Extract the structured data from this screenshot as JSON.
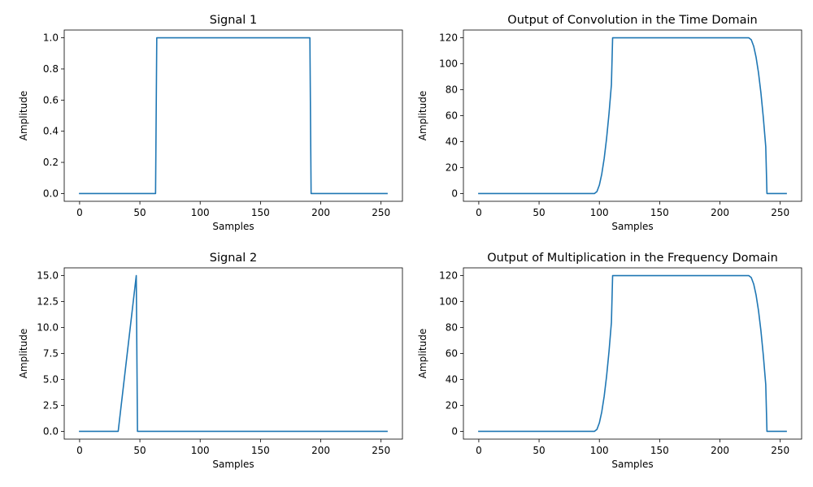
{
  "chart_data": [
    {
      "type": "line",
      "title": "Signal 1",
      "xlabel": "Samples",
      "ylabel": "Amplitude",
      "xlim": [
        -12.75,
        267.75
      ],
      "ylim": [
        -0.05,
        1.05
      ],
      "xticks": [
        0,
        50,
        100,
        150,
        200,
        250
      ],
      "xtick_labels": [
        "0",
        "50",
        "100",
        "150",
        "200",
        "250"
      ],
      "yticks": [
        0,
        0.2,
        0.4,
        0.6,
        0.8,
        1.0
      ],
      "ytick_labels": [
        "0.0",
        "0.2",
        "0.4",
        "0.6",
        "0.8",
        "1.0"
      ],
      "grid": false,
      "color": "#1f77b4",
      "series": [
        {
          "x": [
            0,
            63,
            64,
            191,
            192,
            255
          ],
          "y": [
            0,
            0,
            1,
            1,
            0,
            0
          ]
        }
      ]
    },
    {
      "type": "line",
      "title": "Output of Convolution in the Time Domain",
      "xlabel": "Samples",
      "ylabel": "Amplitude",
      "xlim": [
        -12.75,
        267.75
      ],
      "ylim": [
        -6,
        126
      ],
      "xticks": [
        0,
        50,
        100,
        150,
        200,
        250
      ],
      "xtick_labels": [
        "0",
        "50",
        "100",
        "150",
        "200",
        "250"
      ],
      "yticks": [
        0,
        20,
        40,
        60,
        80,
        100,
        120
      ],
      "ytick_labels": [
        "0",
        "20",
        "40",
        "60",
        "80",
        "100",
        "120"
      ],
      "grid": false,
      "color": "#1f77b4",
      "series": [
        {
          "x": [
            0,
            96,
            98,
            100,
            102,
            104,
            106,
            108,
            110,
            111,
            224,
            226,
            228,
            230,
            232,
            234,
            236,
            238,
            239,
            255
          ],
          "y": [
            0,
            0,
            1.5,
            6.5,
            15,
            27,
            42.5,
            61.5,
            84,
            120,
            120,
            118.5,
            113.5,
            105,
            93,
            77.5,
            58.5,
            36,
            0,
            0
          ]
        }
      ]
    },
    {
      "type": "line",
      "title": "Signal 2",
      "xlabel": "Samples",
      "ylabel": "Amplitude",
      "xlim": [
        -12.75,
        267.75
      ],
      "ylim": [
        -0.75,
        15.75
      ],
      "xticks": [
        0,
        50,
        100,
        150,
        200,
        250
      ],
      "xtick_labels": [
        "0",
        "50",
        "100",
        "150",
        "200",
        "250"
      ],
      "yticks": [
        0,
        2.5,
        5,
        7.5,
        10,
        12.5,
        15
      ],
      "ytick_labels": [
        "0.0",
        "2.5",
        "5.0",
        "7.5",
        "10.0",
        "12.5",
        "15.0"
      ],
      "grid": false,
      "color": "#1f77b4",
      "series": [
        {
          "x": [
            0,
            32,
            47,
            48,
            255
          ],
          "y": [
            0,
            0,
            15,
            0,
            0
          ]
        }
      ]
    },
    {
      "type": "line",
      "title": "Output of Multiplication in the Frequency Domain",
      "xlabel": "Samples",
      "ylabel": "Amplitude",
      "xlim": [
        -12.75,
        267.75
      ],
      "ylim": [
        -6,
        126
      ],
      "xticks": [
        0,
        50,
        100,
        150,
        200,
        250
      ],
      "xtick_labels": [
        "0",
        "50",
        "100",
        "150",
        "200",
        "250"
      ],
      "yticks": [
        0,
        20,
        40,
        60,
        80,
        100,
        120
      ],
      "ytick_labels": [
        "0",
        "20",
        "40",
        "60",
        "80",
        "100",
        "120"
      ],
      "grid": false,
      "color": "#1f77b4",
      "series": [
        {
          "x": [
            0,
            96,
            98,
            100,
            102,
            104,
            106,
            108,
            110,
            111,
            224,
            226,
            228,
            230,
            232,
            234,
            236,
            238,
            239,
            255
          ],
          "y": [
            0,
            0,
            1.5,
            6.5,
            15,
            27,
            42.5,
            61.5,
            84,
            120,
            120,
            118.5,
            113.5,
            105,
            93,
            77.5,
            58.5,
            36,
            0,
            0
          ]
        }
      ]
    }
  ]
}
